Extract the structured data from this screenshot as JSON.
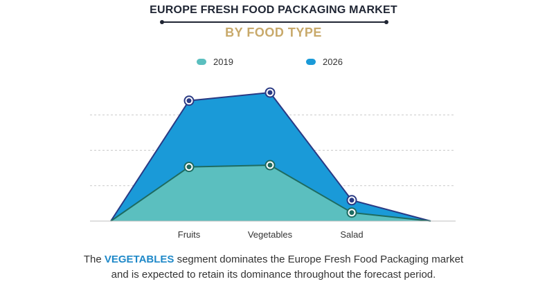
{
  "title": "EUROPE FRESH FOOD PACKAGING MARKET",
  "subtitle": "BY FOOD TYPE",
  "legend": [
    {
      "label": "2019",
      "color": "#5bbfbf"
    },
    {
      "label": "2026",
      "color": "#1a9ad8"
    }
  ],
  "caption": {
    "prefix": "The ",
    "highlight": "VEGETABLES",
    "line1_rest": " segment dominates the Europe Fresh Food Packaging market",
    "line2": "and is expected to retain its dominance throughout the forecast period."
  },
  "chart_data": {
    "type": "area",
    "categories": [
      "Fruits",
      "Vegetables",
      "Salad"
    ],
    "series": [
      {
        "name": "2019",
        "color": "#5bbfbf",
        "line_color": "#1e6b60",
        "values": [
          1.53,
          1.58,
          0.24
        ]
      },
      {
        "name": "2026",
        "color": "#1a9ad8",
        "line_color": "#2a3a84",
        "values": [
          3.4,
          3.63,
          0.59
        ]
      }
    ],
    "ylim": [
      0,
      4
    ],
    "grid": true,
    "legend_position": "top-center",
    "axis_tick_labels": false
  }
}
